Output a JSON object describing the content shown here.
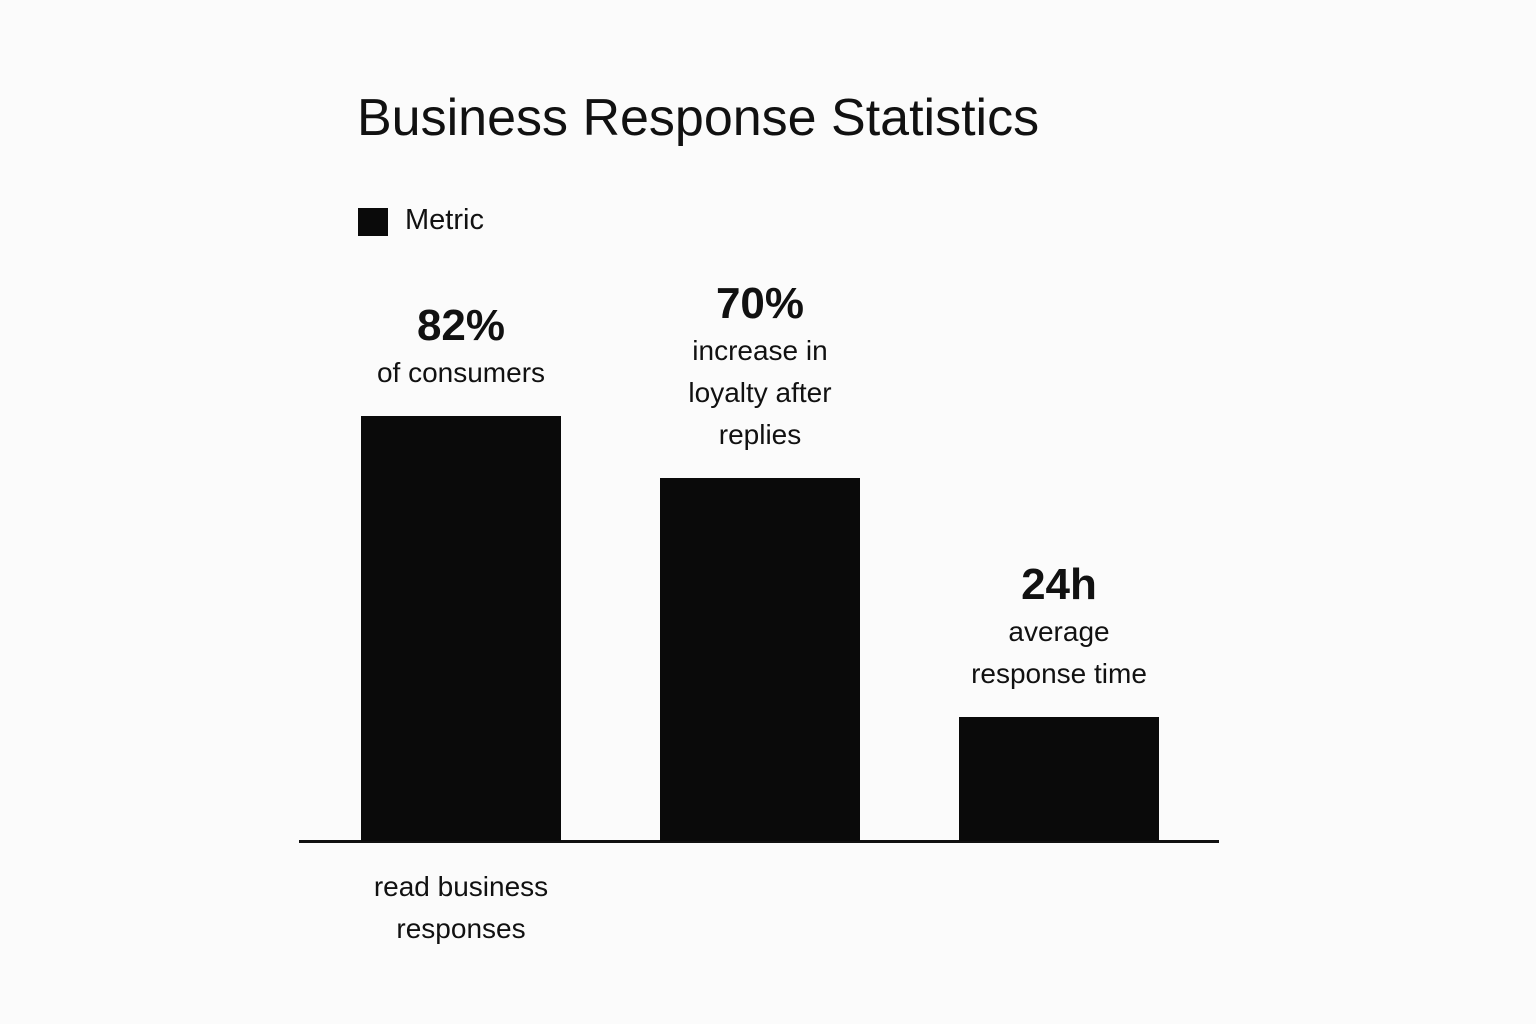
{
  "chart_data": {
    "type": "bar",
    "title": "Business Response Statistics",
    "series": [
      {
        "name": "Metric",
        "color": "#0a0a0a",
        "values": [
          82,
          70,
          24
        ],
        "value_labels": [
          "82%",
          "70%",
          "24h"
        ]
      }
    ],
    "categories": [
      "read business responses",
      null,
      null
    ],
    "annotations": [
      "of consumers",
      "increase in loyalty after replies",
      "average response time"
    ]
  }
}
